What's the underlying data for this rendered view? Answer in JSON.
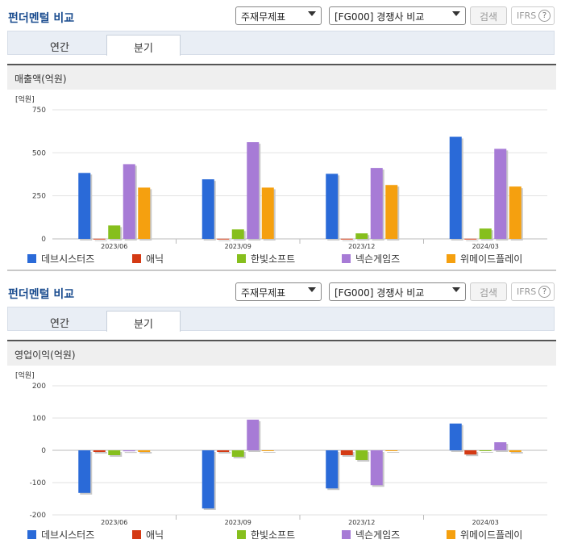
{
  "header": {
    "title": "펀더멘털 비교",
    "select1": "주재무제표",
    "select2": "[FG000] 경쟁사 비교",
    "search_label": "검색",
    "ifrs_label": "IFRS",
    "help": "?"
  },
  "tabs": [
    "연간",
    "분기"
  ],
  "active_tab": 1,
  "colors": {
    "데브시스터즈": "#2a6ad8",
    "애닉": "#d43a14",
    "한빛소프트": "#86bf1d",
    "넥슨게임즈": "#a77bd6",
    "위메이드플레이": "#f5a00f"
  },
  "legend": [
    "데브시스터즈",
    "애닉",
    "한빛소프트",
    "넥슨게임즈",
    "위메이드플레이"
  ],
  "chart_data": [
    {
      "type": "bar",
      "title": "매출액(억원)",
      "unit": "[억원]",
      "categories": [
        "2023/06",
        "2023/09",
        "2023/12",
        "2024/03"
      ],
      "ylim": [
        0,
        750
      ],
      "yticks": [
        0,
        250,
        500,
        750
      ],
      "series": [
        {
          "name": "데브시스터즈",
          "values": [
            383,
            346,
            378,
            593
          ]
        },
        {
          "name": "애닉",
          "values": [
            1,
            1,
            1,
            1
          ]
        },
        {
          "name": "한빛소프트",
          "values": [
            78,
            55,
            32,
            60
          ]
        },
        {
          "name": "넥슨게임즈",
          "values": [
            434,
            562,
            412,
            523
          ]
        },
        {
          "name": "위메이드플레이",
          "values": [
            298,
            298,
            313,
            304
          ]
        }
      ]
    },
    {
      "type": "bar",
      "title": "영업이익(억원)",
      "unit": "[억원]",
      "categories": [
        "2023/06",
        "2023/09",
        "2023/12",
        "2024/03"
      ],
      "ylim": [
        -200,
        200
      ],
      "yticks": [
        -200,
        -100,
        0,
        100,
        200
      ],
      "series": [
        {
          "name": "데브시스터즈",
          "values": [
            -132,
            -180,
            -118,
            83
          ]
        },
        {
          "name": "애닉",
          "values": [
            -5,
            -5,
            -15,
            -13
          ]
        },
        {
          "name": "한빛소프트",
          "values": [
            -15,
            -20,
            -30,
            0
          ]
        },
        {
          "name": "넥슨게임즈",
          "values": [
            -3,
            95,
            -108,
            25
          ]
        },
        {
          "name": "위메이드플레이",
          "values": [
            -5,
            -2,
            -2,
            -5
          ]
        }
      ]
    }
  ]
}
